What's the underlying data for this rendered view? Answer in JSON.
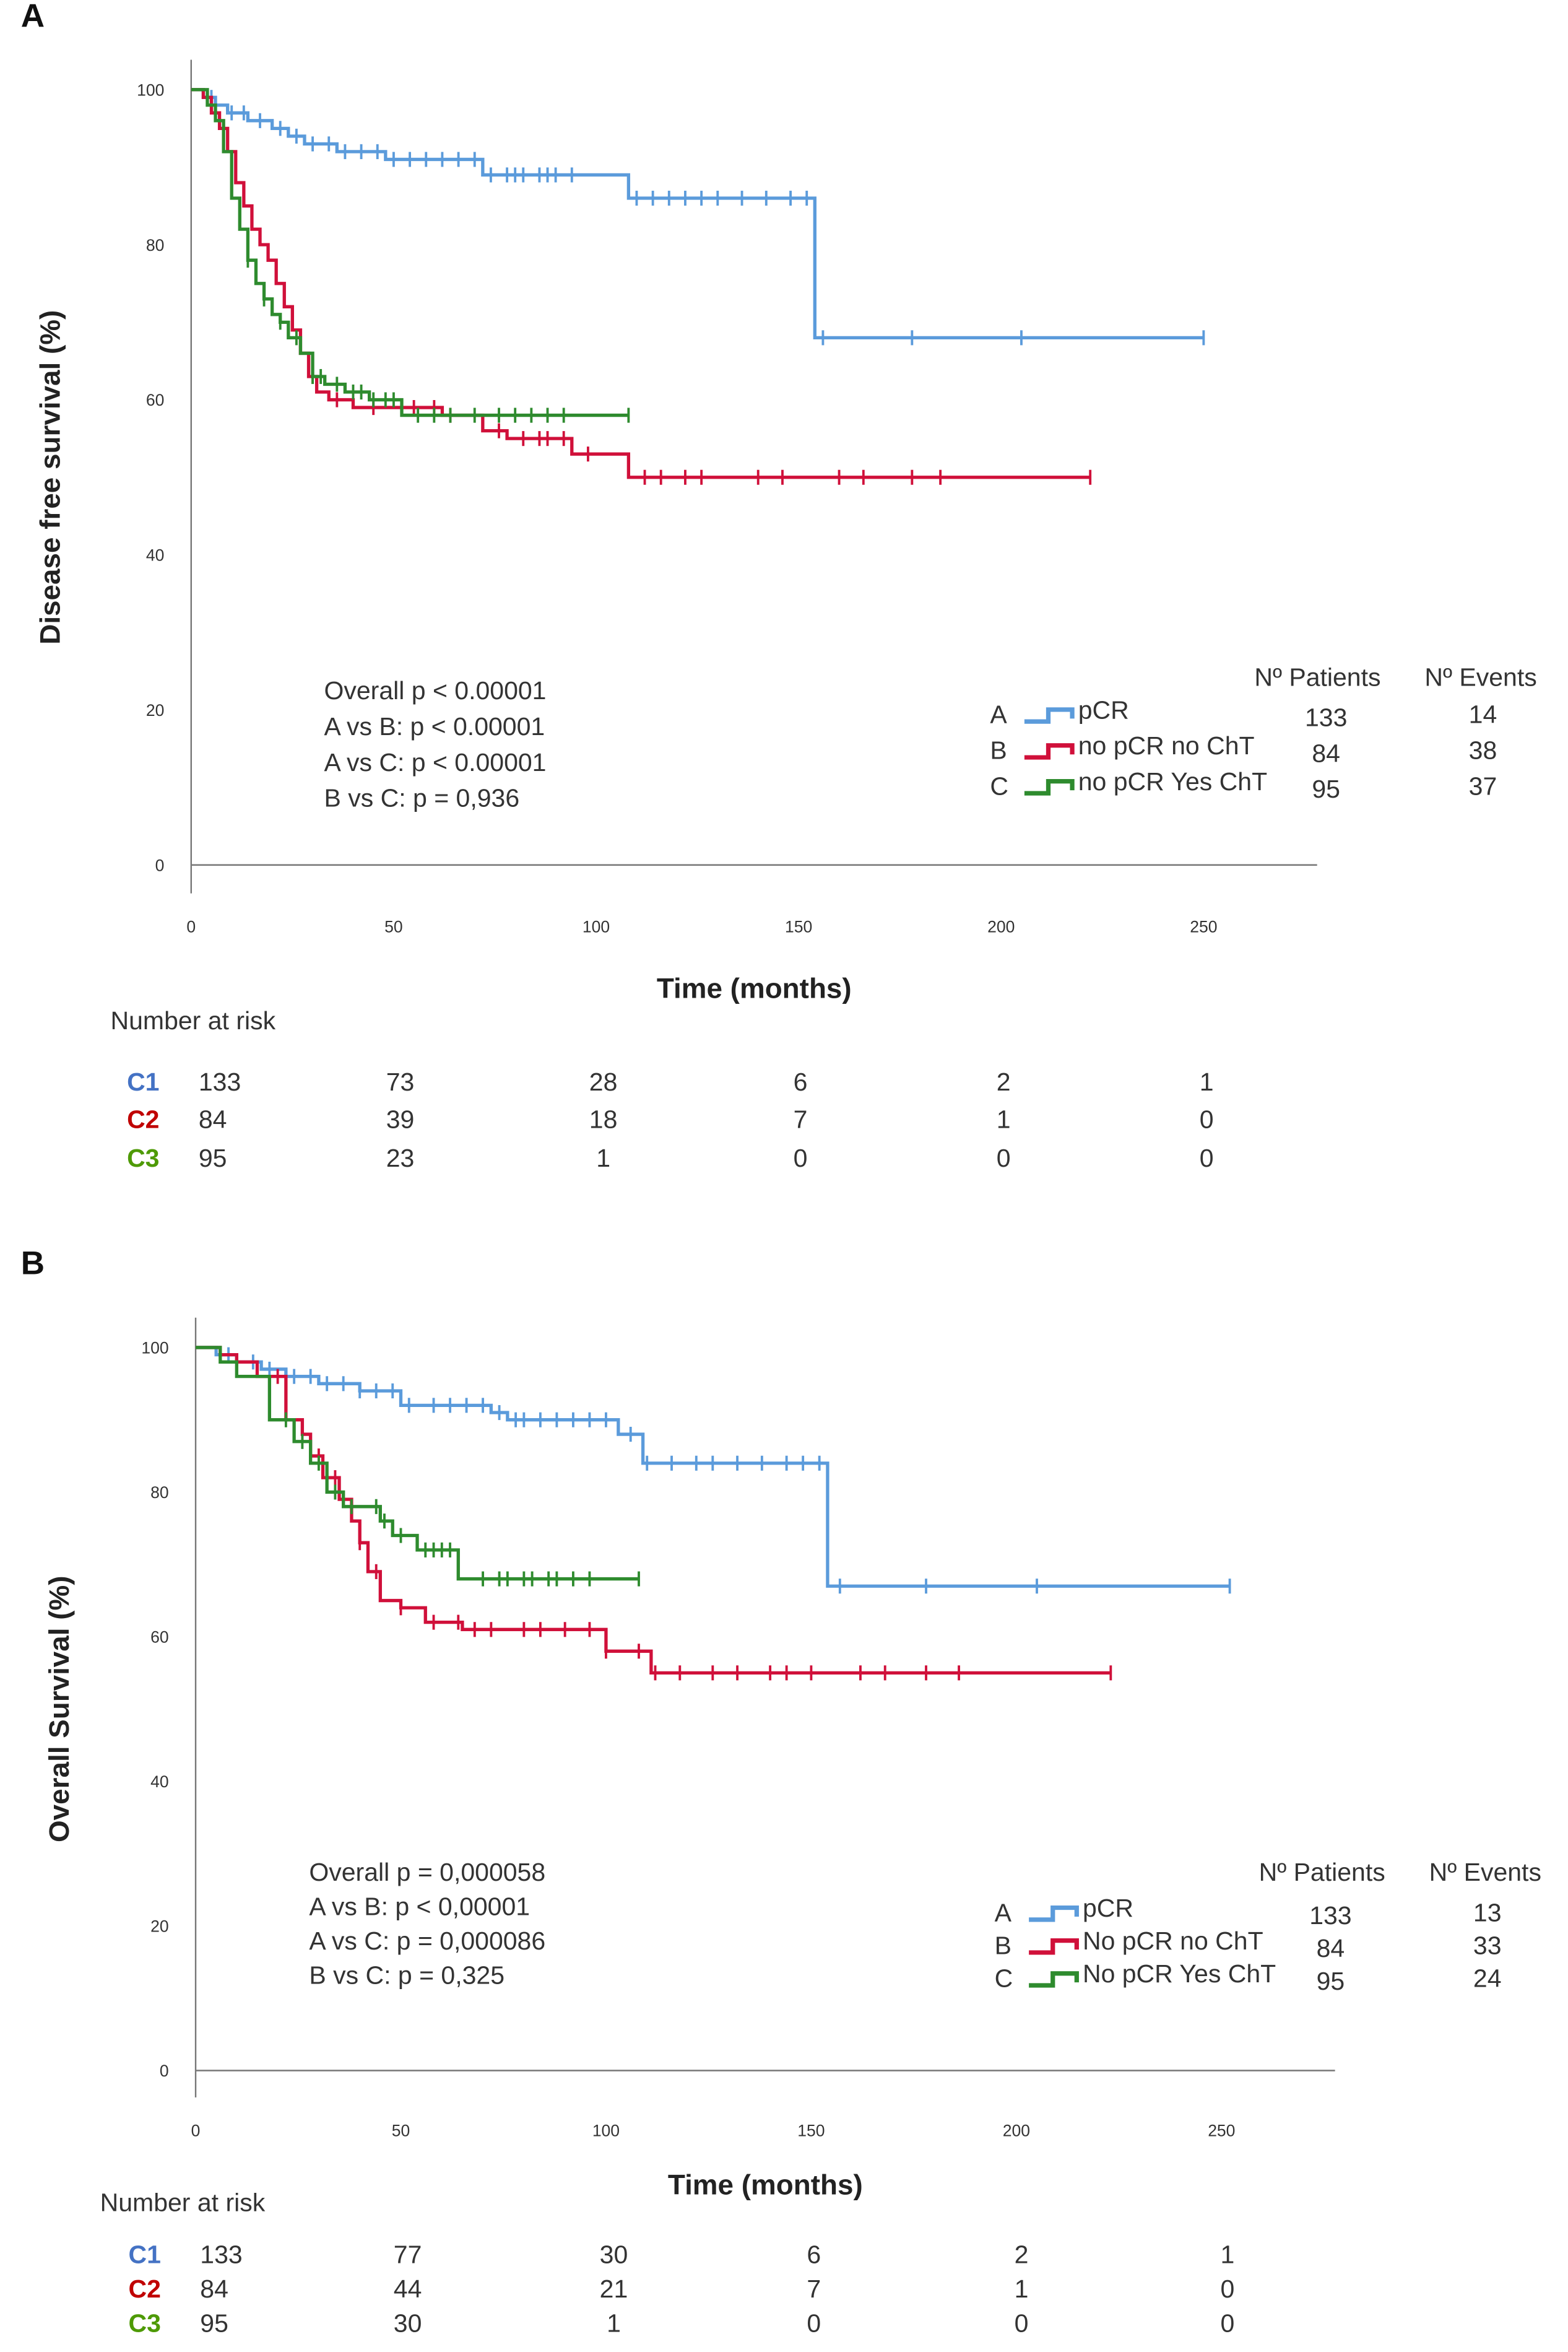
{
  "colors": {
    "A": "#5b9bdb",
    "B": "#d0103a",
    "C": "#2e8b2e"
  },
  "chart_data": [
    {
      "type": "line",
      "panel": "A",
      "title": "",
      "xlabel": "Time (months)",
      "ylabel": "Disease free survival (%)",
      "xlim": [
        0,
        280
      ],
      "ylim": [
        0,
        100
      ],
      "xticks": [
        0,
        50,
        100,
        150,
        200,
        250
      ],
      "yticks": [
        0,
        20,
        40,
        60,
        80,
        100
      ],
      "stats": [
        "Overall p < 0.00001",
        "A vs B: p < 0.00001",
        "A vs C: p < 0.00001",
        "B vs C: p = 0,936"
      ],
      "legend_headers": {
        "patients": "Nº Patients",
        "events": "Nº Events"
      },
      "series": [
        {
          "key": "A",
          "name": "pCR",
          "patients": "133",
          "events": "14",
          "steps": [
            [
              0,
              100
            ],
            [
              3,
              99
            ],
            [
              6,
              98
            ],
            [
              9,
              97
            ],
            [
              14,
              96
            ],
            [
              20,
              95
            ],
            [
              24,
              94
            ],
            [
              28,
              93
            ],
            [
              36,
              92
            ],
            [
              48,
              91
            ],
            [
              72,
              89
            ],
            [
              108,
              86
            ],
            [
              154,
              68
            ]
          ],
          "end": 250,
          "censors": [
            5,
            10,
            13,
            17,
            22,
            26,
            30,
            34,
            38,
            42,
            46,
            50,
            54,
            58,
            62,
            66,
            70,
            74,
            78,
            80,
            82,
            86,
            88,
            90,
            94,
            110,
            114,
            118,
            122,
            126,
            130,
            136,
            142,
            148,
            152,
            156,
            178,
            205,
            250
          ]
        },
        {
          "key": "B",
          "name": "no pCR no ChT",
          "patients": "84",
          "events": "38",
          "steps": [
            [
              0,
              100
            ],
            [
              3,
              99
            ],
            [
              5,
              97
            ],
            [
              7,
              95
            ],
            [
              9,
              92
            ],
            [
              11,
              88
            ],
            [
              13,
              85
            ],
            [
              15,
              82
            ],
            [
              17,
              80
            ],
            [
              19,
              78
            ],
            [
              21,
              75
            ],
            [
              23,
              72
            ],
            [
              25,
              69
            ],
            [
              27,
              66
            ],
            [
              29,
              63
            ],
            [
              31,
              61
            ],
            [
              34,
              60
            ],
            [
              40,
              59
            ],
            [
              62,
              58
            ],
            [
              72,
              56
            ],
            [
              78,
              55
            ],
            [
              94,
              53
            ],
            [
              108,
              50
            ]
          ],
          "end": 222,
          "censors": [
            30,
            36,
            45,
            55,
            60,
            64,
            76,
            82,
            86,
            88,
            92,
            98,
            112,
            116,
            122,
            126,
            140,
            146,
            160,
            166,
            178,
            185,
            222
          ]
        },
        {
          "key": "C",
          "name": "no pCR Yes ChT",
          "patients": "95",
          "events": "37",
          "steps": [
            [
              0,
              100
            ],
            [
              4,
              98
            ],
            [
              6,
              96
            ],
            [
              8,
              92
            ],
            [
              10,
              86
            ],
            [
              12,
              82
            ],
            [
              14,
              78
            ],
            [
              16,
              75
            ],
            [
              18,
              73
            ],
            [
              20,
              71
            ],
            [
              22,
              70
            ],
            [
              24,
              68
            ],
            [
              27,
              66
            ],
            [
              30,
              63
            ],
            [
              33,
              62
            ],
            [
              38,
              61
            ],
            [
              44,
              60
            ],
            [
              52,
              58
            ]
          ],
          "end": 108,
          "censors": [
            14,
            18,
            22,
            26,
            30,
            32,
            36,
            40,
            42,
            45,
            48,
            50,
            56,
            60,
            64,
            70,
            76,
            80,
            84,
            88,
            92,
            108
          ]
        }
      ],
      "risk_table": {
        "title": "Number  at risk",
        "rows": [
          {
            "label": "C1",
            "values": [
              "133",
              "73",
              "28",
              "6",
              "2",
              "1"
            ]
          },
          {
            "label": "C2",
            "values": [
              "84",
              "39",
              "18",
              "7",
              "1",
              "0"
            ]
          },
          {
            "label": "C3",
            "values": [
              "95",
              "23",
              "1",
              "0",
              "0",
              "0"
            ]
          }
        ]
      }
    },
    {
      "type": "line",
      "panel": "B",
      "title": "",
      "xlabel": "Time (months)",
      "ylabel": "Overall Survival (%)",
      "xlim": [
        0,
        280
      ],
      "ylim": [
        0,
        100
      ],
      "xticks": [
        0,
        50,
        100,
        150,
        200,
        250
      ],
      "yticks": [
        0,
        20,
        40,
        60,
        80,
        100
      ],
      "stats": [
        "Overall p = 0,000058",
        "A vs B: p < 0,00001",
        "A vs C: p = 0,000086",
        "B vs C: p = 0,325"
      ],
      "legend_headers": {
        "patients": "Nº Patients",
        "events": "Nº Events"
      },
      "series": [
        {
          "key": "A",
          "name": "pCR",
          "patients": "133",
          "events": "13",
          "steps": [
            [
              0,
              100
            ],
            [
              5,
              99
            ],
            [
              10,
              98
            ],
            [
              16,
              97
            ],
            [
              22,
              96
            ],
            [
              30,
              95
            ],
            [
              40,
              94
            ],
            [
              50,
              92
            ],
            [
              72,
              91
            ],
            [
              76,
              90
            ],
            [
              103,
              88
            ],
            [
              109,
              84
            ],
            [
              154,
              67
            ]
          ],
          "end": 252,
          "censors": [
            8,
            14,
            18,
            24,
            28,
            32,
            36,
            40,
            44,
            48,
            52,
            58,
            62,
            66,
            70,
            74,
            78,
            80,
            84,
            88,
            92,
            96,
            100,
            106,
            110,
            116,
            122,
            126,
            132,
            138,
            144,
            148,
            152,
            157,
            178,
            205,
            252
          ]
        },
        {
          "key": "B",
          "name": "No pCR no ChT",
          "patients": "84",
          "events": "33",
          "steps": [
            [
              0,
              100
            ],
            [
              6,
              99
            ],
            [
              10,
              98
            ],
            [
              15,
              96
            ],
            [
              22,
              90
            ],
            [
              26,
              88
            ],
            [
              28,
              85
            ],
            [
              31,
              82
            ],
            [
              35,
              79
            ],
            [
              38,
              76
            ],
            [
              40,
              73
            ],
            [
              42,
              69
            ],
            [
              45,
              65
            ],
            [
              50,
              64
            ],
            [
              56,
              62
            ],
            [
              65,
              61
            ],
            [
              100,
              58
            ],
            [
              111,
              55
            ]
          ],
          "end": 223,
          "censors": [
            20,
            26,
            30,
            34,
            40,
            44,
            50,
            58,
            64,
            68,
            72,
            80,
            84,
            90,
            96,
            100,
            108,
            112,
            118,
            126,
            132,
            140,
            144,
            150,
            162,
            168,
            178,
            186,
            223
          ]
        },
        {
          "key": "C",
          "name": "No pCR Yes ChT",
          "patients": "95",
          "events": "24",
          "steps": [
            [
              0,
              100
            ],
            [
              6,
              98
            ],
            [
              10,
              96
            ],
            [
              18,
              90
            ],
            [
              24,
              87
            ],
            [
              28,
              84
            ],
            [
              32,
              80
            ],
            [
              36,
              78
            ],
            [
              45,
              76
            ],
            [
              48,
              74
            ],
            [
              54,
              72
            ],
            [
              64,
              68
            ]
          ],
          "end": 108,
          "censors": [
            22,
            26,
            30,
            34,
            38,
            44,
            46,
            50,
            56,
            58,
            60,
            62,
            70,
            74,
            76,
            80,
            82,
            86,
            88,
            92,
            96,
            108
          ]
        }
      ],
      "risk_table": {
        "title": "Number  at risk",
        "rows": [
          {
            "label": "C1",
            "values": [
              "133",
              "77",
              "30",
              "6",
              "2",
              "1"
            ]
          },
          {
            "label": "C2",
            "values": [
              "84",
              "44",
              "21",
              "7",
              "1",
              "0"
            ]
          },
          {
            "label": "C3",
            "values": [
              "95",
              "30",
              "1",
              "0",
              "0",
              "0"
            ]
          }
        ]
      }
    }
  ]
}
